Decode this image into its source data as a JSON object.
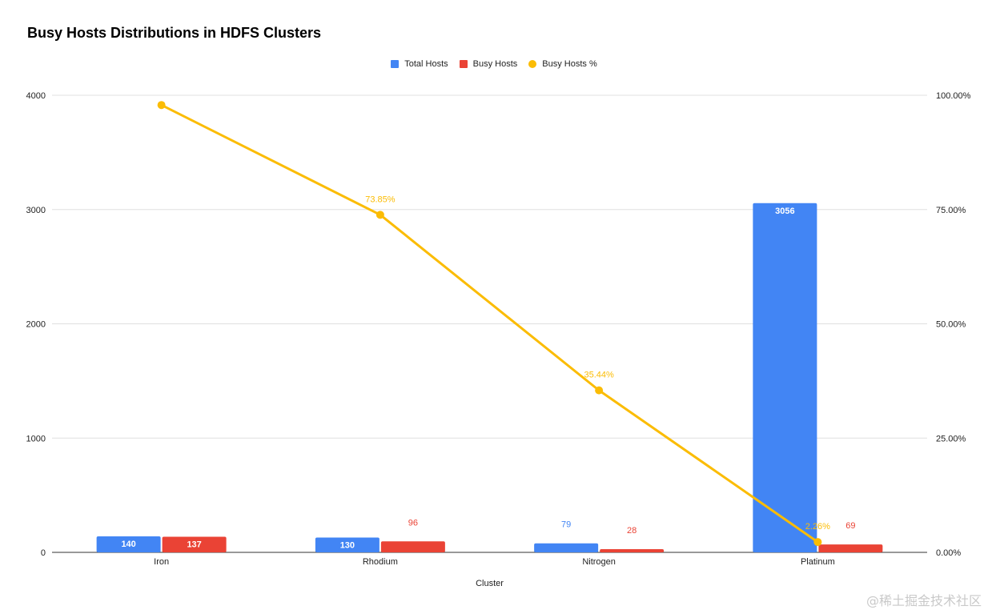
{
  "chart_data": {
    "type": "bar",
    "title": "Busy Hosts Distributions in HDFS Clusters",
    "xlabel": "Cluster",
    "categories": [
      "Iron",
      "Rhodium",
      "Nitrogen",
      "Platinum"
    ],
    "series": [
      {
        "name": "Total Hosts",
        "type": "bar",
        "axis": "left",
        "color": "#4285f4",
        "values": [
          140,
          130,
          79,
          3056
        ],
        "labels": [
          "140",
          "130",
          "79",
          "3056"
        ]
      },
      {
        "name": "Busy Hosts",
        "type": "bar",
        "axis": "left",
        "color": "#ea4335",
        "values": [
          137,
          96,
          28,
          69
        ],
        "labels": [
          "137",
          "96",
          "28",
          "69"
        ]
      },
      {
        "name": "Busy Hosts %",
        "type": "line",
        "axis": "right",
        "color": "#fbbc04",
        "values": [
          97.86,
          73.85,
          35.44,
          2.26
        ],
        "labels": [
          "",
          "73.85%",
          "35.44%",
          "2.26%"
        ]
      }
    ],
    "y_left": {
      "ylim": [
        0,
        4000
      ],
      "ticks": [
        "0",
        "1000",
        "2000",
        "3000",
        "4000"
      ]
    },
    "y_right": {
      "ylim": [
        0,
        100
      ],
      "ticks": [
        "0.00%",
        "25.00%",
        "50.00%",
        "75.00%",
        "100.00%"
      ]
    },
    "grid": true,
    "legend_position": "top-center"
  },
  "watermark": "@稀土掘金技术社区"
}
